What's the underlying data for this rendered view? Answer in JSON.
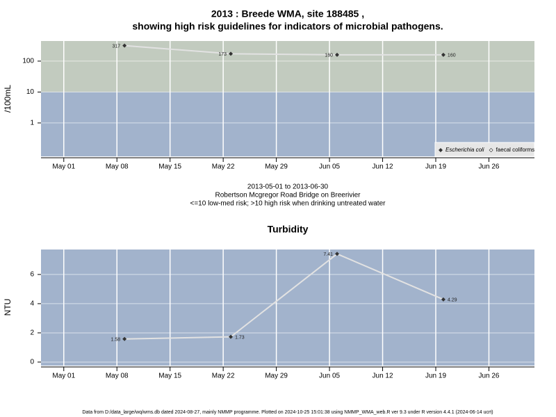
{
  "chart_data": [
    {
      "type": "line",
      "title": "2013 : Breede WMA, site 188485 ,",
      "subtitle": "showing high risk guidelines for indicators of microbial pathogens.",
      "notes": [
        "2013-05-01 to 2013-06-30",
        "Robertson Mcgregor Road Bridge on Breerivier",
        "<=10 low-med risk; >10 high risk when drinking untreated water"
      ],
      "y_label": "/100mL",
      "log_y": true,
      "x": [
        "2013-05-09",
        "2013-05-23",
        "2013-06-06",
        "2013-06-20"
      ],
      "series": [
        {
          "name": "Escherichia coli",
          "color": "#333333",
          "values": [
            317,
            173,
            160,
            160
          ]
        },
        {
          "name": "faecal coliforms",
          "color": "#333333",
          "values": [
            null,
            null,
            null,
            null
          ]
        }
      ],
      "line_color": "#e2e2e2",
      "background": "#a2b3cc",
      "threshold": 10,
      "above_color": "#c2cbbf",
      "xlim": [
        "2013-04-28",
        "2013-07-02"
      ],
      "xticks": [
        {
          "value": "2013-05-01",
          "label": "May 01"
        },
        {
          "value": "2013-05-08",
          "label": "May 08"
        },
        {
          "value": "2013-05-15",
          "label": "May 15"
        },
        {
          "value": "2013-05-22",
          "label": "May 22"
        },
        {
          "value": "2013-05-29",
          "label": "May 29"
        },
        {
          "value": "2013-06-05",
          "label": "Jun 05"
        },
        {
          "value": "2013-06-12",
          "label": "Jun 12"
        },
        {
          "value": "2013-06-19",
          "label": "Jun 19"
        },
        {
          "value": "2013-06-26",
          "label": "Jun 26"
        }
      ],
      "ylim": [
        0.083,
        447
      ],
      "yticks": [
        1,
        10,
        100
      ],
      "grid": true,
      "legend": "bottom-right"
    },
    {
      "type": "line",
      "title": "Turbidity",
      "y_label": "NTU",
      "x": [
        "2013-05-09",
        "2013-05-23",
        "2013-06-06",
        "2013-06-20"
      ],
      "series": [
        {
          "name": "Turbidity",
          "color": "#333333",
          "values": [
            1.58,
            1.73,
            7.41,
            4.29
          ]
        }
      ],
      "line_color": "#e2e2e2",
      "background": "#a2b3cc",
      "xlim": [
        "2013-04-28",
        "2013-07-02"
      ],
      "xticks": [
        {
          "value": "2013-05-01",
          "label": "May 01"
        },
        {
          "value": "2013-05-08",
          "label": "May 08"
        },
        {
          "value": "2013-05-15",
          "label": "May 15"
        },
        {
          "value": "2013-05-22",
          "label": "May 22"
        },
        {
          "value": "2013-05-29",
          "label": "May 29"
        },
        {
          "value": "2013-06-05",
          "label": "Jun 05"
        },
        {
          "value": "2013-06-12",
          "label": "Jun 12"
        },
        {
          "value": "2013-06-19",
          "label": "Jun 19"
        },
        {
          "value": "2013-06-26",
          "label": "Jun 26"
        }
      ],
      "ylim": [
        -0.24,
        7.71
      ],
      "yticks": [
        0,
        2,
        4,
        6
      ],
      "grid": true
    }
  ],
  "footer": "Data from D:/data_large/wq/wms.db dated 2024-08-27, mainly NMMP programme. Plotted on 2024-10-25 15:01:38 using NMMP_WMA_web.R ver 9.3 under R version 4.4.1 (2024-06-14 ucrt)"
}
